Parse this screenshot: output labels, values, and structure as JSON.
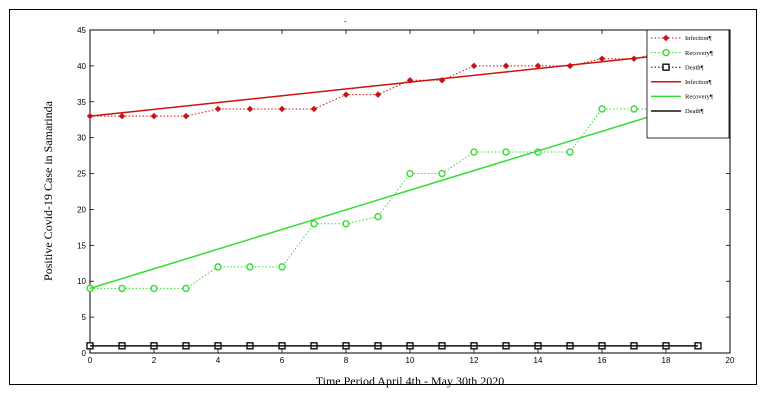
{
  "chart_data": {
    "type": "line",
    "title": "",
    "xlabel": "Time Period April 4th - May 30th 2020",
    "ylabel": "Positive Covid-19 Case in Samarinda",
    "xlim": [
      0,
      20
    ],
    "ylim": [
      0,
      45
    ],
    "x_ticks": [
      "0",
      "2",
      "4",
      "6",
      "8",
      "10",
      "12",
      "14",
      "16",
      "18",
      "20"
    ],
    "y_ticks": [
      "0",
      "5",
      "10",
      "15",
      "20",
      "25",
      "30",
      "35",
      "40",
      "45"
    ],
    "grid": false,
    "legend_position": "top-right",
    "x": [
      0,
      1,
      2,
      3,
      4,
      5,
      6,
      7,
      8,
      9,
      10,
      11,
      12,
      13,
      14,
      15,
      16,
      17,
      18,
      19
    ],
    "series": [
      {
        "name": "Infection¶",
        "style": "dotted-markers",
        "marker": "diamond",
        "color": "#cc1111",
        "values": [
          33,
          33,
          33,
          33,
          34,
          34,
          34,
          34,
          36,
          36,
          38,
          38,
          40,
          40,
          40,
          40,
          41,
          41,
          42,
          42
        ]
      },
      {
        "name": "Recovery¶",
        "style": "dotted-markers",
        "marker": "circle",
        "color": "#33dd33",
        "values": [
          9,
          9,
          9,
          9,
          12,
          12,
          12,
          18,
          18,
          19,
          25,
          25,
          28,
          28,
          28,
          28,
          34,
          34,
          34,
          34
        ]
      },
      {
        "name": "Death¶",
        "style": "dotted-markers",
        "marker": "square",
        "color": "#111111",
        "values": [
          1,
          1,
          1,
          1,
          1,
          1,
          1,
          1,
          1,
          1,
          1,
          1,
          1,
          1,
          1,
          1,
          1,
          1,
          1,
          1
        ]
      },
      {
        "name": "Infection¶",
        "style": "solid",
        "color": "#cc1111",
        "x": [
          0,
          19
        ],
        "values": [
          33,
          42
        ]
      },
      {
        "name": "Recovery¶",
        "style": "solid",
        "color": "#33dd33",
        "x": [
          0,
          19
        ],
        "values": [
          9,
          35
        ]
      },
      {
        "name": "Death¶",
        "style": "solid",
        "color": "#111111",
        "x": [
          0,
          19
        ],
        "values": [
          1,
          1
        ]
      }
    ]
  }
}
